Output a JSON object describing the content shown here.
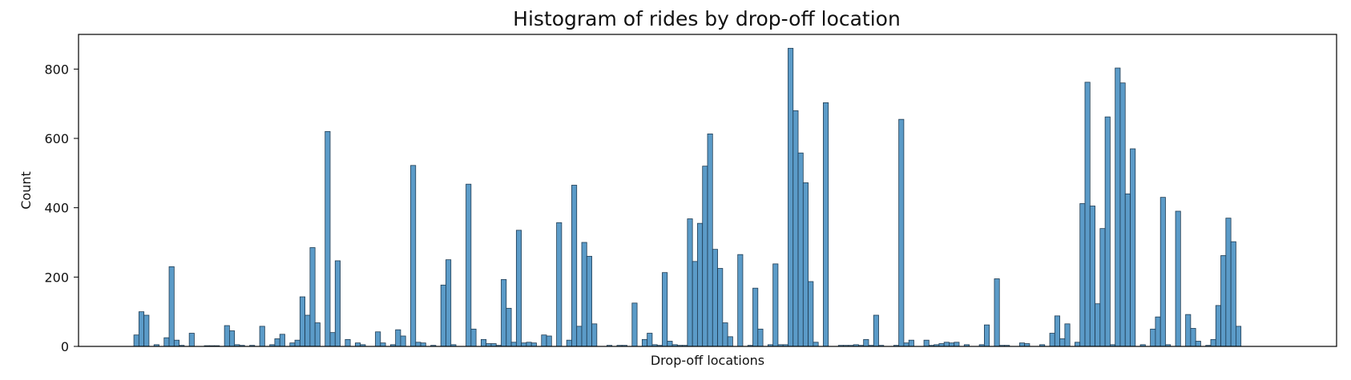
{
  "chart_data": {
    "type": "bar",
    "title": "Histogram of rides by drop-off location",
    "xlabel": "Drop-off locations",
    "ylabel": "Count",
    "ylim": [
      0,
      900
    ],
    "yticks": [
      0,
      200,
      400,
      600,
      800
    ],
    "xticks": [],
    "grid": false,
    "legend": "none",
    "bar_color": "#5b9bc8",
    "bar_edge_color": "#1f3b52",
    "bins": 250,
    "values": [
      0,
      0,
      0,
      0,
      0,
      0,
      0,
      0,
      0,
      0,
      0,
      33,
      100,
      90,
      0,
      5,
      0,
      25,
      230,
      18,
      3,
      0,
      38,
      0,
      0,
      2,
      2,
      2,
      0,
      60,
      45,
      5,
      3,
      0,
      3,
      0,
      58,
      0,
      5,
      22,
      35,
      0,
      10,
      18,
      143,
      90,
      285,
      68,
      0,
      620,
      40,
      247,
      0,
      20,
      0,
      10,
      5,
      0,
      0,
      42,
      10,
      0,
      5,
      48,
      30,
      0,
      522,
      12,
      10,
      0,
      3,
      0,
      177,
      250,
      5,
      0,
      0,
      468,
      50,
      0,
      20,
      8,
      8,
      3,
      193,
      110,
      12,
      335,
      10,
      12,
      10,
      0,
      33,
      30,
      0,
      357,
      0,
      18,
      465,
      58,
      300,
      260,
      65,
      0,
      0,
      3,
      0,
      3,
      3,
      0,
      125,
      0,
      20,
      38,
      5,
      3,
      213,
      15,
      5,
      3,
      3,
      368,
      245,
      355,
      520,
      613,
      280,
      225,
      68,
      28,
      0,
      265,
      0,
      3,
      168,
      50,
      0,
      5,
      238,
      5,
      5,
      860,
      680,
      558,
      472,
      187,
      12,
      0,
      703,
      0,
      0,
      3,
      3,
      3,
      5,
      3,
      20,
      3,
      90,
      3,
      0,
      0,
      3,
      655,
      10,
      18,
      0,
      0,
      18,
      3,
      5,
      8,
      12,
      10,
      12,
      0,
      5,
      0,
      0,
      5,
      62,
      0,
      195,
      3,
      3,
      0,
      0,
      10,
      8,
      0,
      0,
      5,
      0,
      38,
      88,
      22,
      65,
      0,
      12,
      412,
      762,
      405,
      123,
      340,
      662,
      5,
      803,
      760,
      440,
      570,
      0,
      5,
      0,
      50,
      85,
      430,
      5,
      0,
      390,
      0,
      92,
      52,
      15,
      0,
      3,
      20,
      118,
      262,
      370,
      302,
      58,
      0,
      0,
      0,
      0,
      0,
      0,
      0,
      0,
      0,
      0,
      0,
      0,
      0,
      0,
      0,
      0,
      0,
      0,
      0
    ]
  }
}
